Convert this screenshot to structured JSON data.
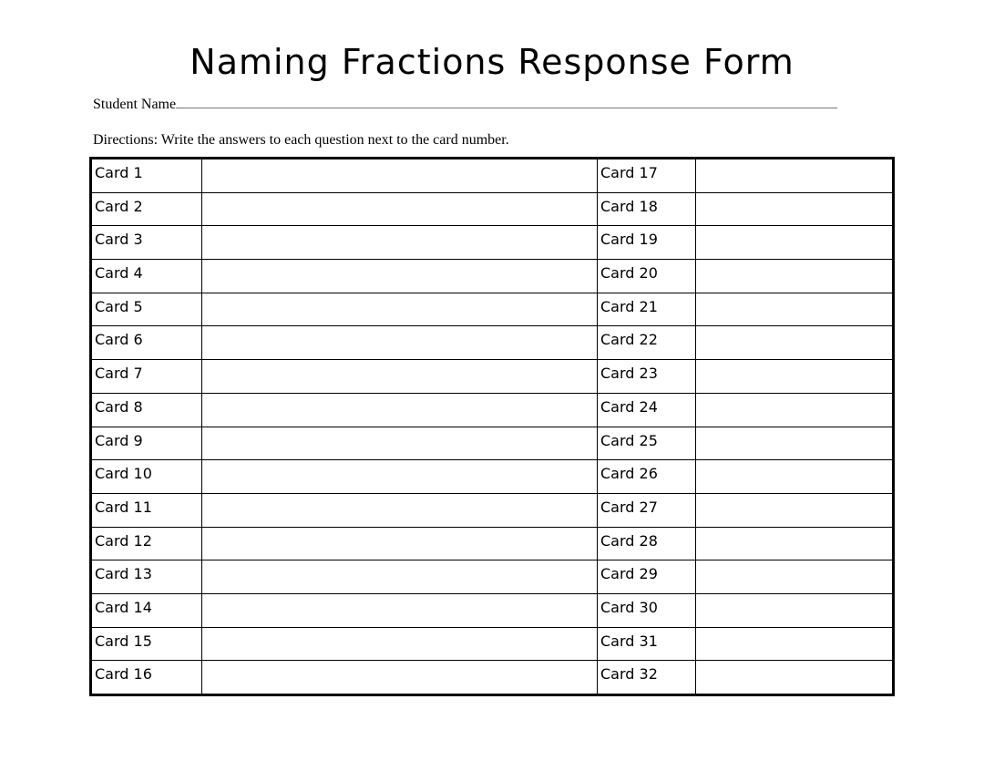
{
  "title": "Naming Fractions Response Form",
  "student_name_label": "Student Name",
  "directions": "Directions:  Write the answers to each question next to the card number.",
  "left_cards": [
    "Card 1",
    "Card 2",
    "Card 3",
    "Card 4",
    "Card 5",
    "Card 6",
    "Card 7",
    "Card 8",
    "Card 9",
    "Card 10",
    "Card 11",
    "Card 12",
    "Card 13",
    "Card 14",
    "Card 15",
    "Card 16"
  ],
  "right_cards": [
    "Card 17",
    "Card 18",
    "Card 19",
    "Card 20",
    "Card 21",
    "Card 22",
    "Card 23",
    "Card 24",
    "Card 25",
    "Card 26",
    "Card 27",
    "Card 28",
    "Card 29",
    "Card 30",
    "Card 31",
    "Card 32"
  ]
}
